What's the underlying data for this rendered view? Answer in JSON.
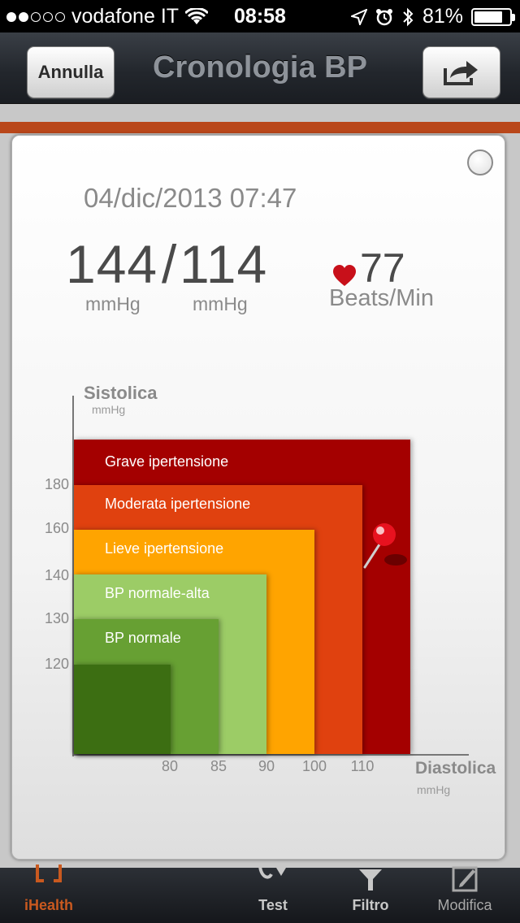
{
  "status_bar": {
    "carrier": "vodafone IT",
    "time": "08:58",
    "battery": "81%",
    "signal_dots": 5,
    "signal_dots_on": 2,
    "battery_level": 0.81
  },
  "nav": {
    "cancel_label": "Annulla",
    "title": "Cronologia BP",
    "share_icon": "share-icon"
  },
  "reading": {
    "date": "04/dic/2013 07:47",
    "systolic": "144",
    "diastolic": "114",
    "separator": "/",
    "systolic_unit": "mmHg",
    "diastolic_unit": "mmHg",
    "pulse": "77",
    "pulse_unit": "Beats/Min"
  },
  "chart_data": {
    "type": "area",
    "ylabel": "Sistolica",
    "yunit": "mmHg",
    "xlabel": "Diastolica",
    "xunit": "mmHg",
    "y_ticks": [
      "180",
      "160",
      "140",
      "130",
      "120"
    ],
    "x_ticks": [
      "80",
      "85",
      "90",
      "100",
      "110"
    ],
    "zones": [
      {
        "label": "Grave ipertensione",
        "color": "#a40000"
      },
      {
        "label": "Moderata ipertensione",
        "color": "#e0410f"
      },
      {
        "label": "Lieve ipertensione",
        "color": "#ffa400"
      },
      {
        "label": "BP normale-alta",
        "color": "#9ccc66"
      },
      {
        "label": "BP normale",
        "color": "#67a033"
      },
      {
        "label": "",
        "color": "#3c6e12"
      }
    ],
    "marker": {
      "systolic": 144,
      "diastolic": 114,
      "color": "#e8121f"
    }
  },
  "tabs": [
    {
      "label": "iHealth",
      "icon": "ihealth-bracket-icon"
    },
    {
      "label": "Test",
      "icon": "stethoscope-icon"
    },
    {
      "label": "Filtro",
      "icon": "filter-icon"
    },
    {
      "label": "Modifica",
      "icon": "edit-icon"
    }
  ]
}
